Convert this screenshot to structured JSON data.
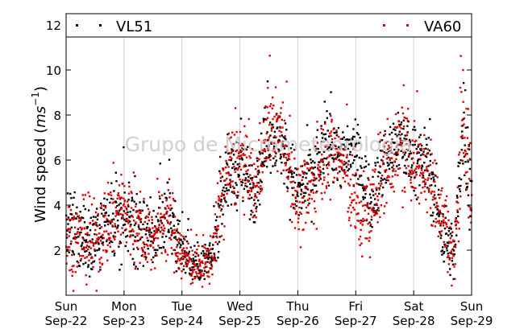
{
  "chart_data": {
    "type": "scatter",
    "title": "",
    "ylabel": "Wind speed (m s^-1)",
    "ylabel_parts": {
      "base": "Wind speed (",
      "unit": "ms",
      "exp": "−1",
      "close": ")"
    },
    "xlabel": "",
    "xlim": [
      0,
      7
    ],
    "ylim": [
      0,
      12.5
    ],
    "yticks": [
      2,
      4,
      6,
      8,
      10,
      12
    ],
    "ytick_labels": [
      "2",
      "4",
      "6",
      "8",
      "10",
      "12"
    ],
    "xticks": [
      0,
      1,
      2,
      3,
      4,
      5,
      6,
      7
    ],
    "xtick_labels": [
      {
        "day": "Sun",
        "date": "Sep-22"
      },
      {
        "day": "Mon",
        "date": "Sep-23"
      },
      {
        "day": "Tue",
        "date": "Sep-24"
      },
      {
        "day": "Wed",
        "date": "Sep-25"
      },
      {
        "day": "Thu",
        "date": "Sep-26"
      },
      {
        "day": "Fri",
        "date": "Sep-27"
      },
      {
        "day": "Sat",
        "date": "Sep-28"
      },
      {
        "day": "Sun",
        "date": "Sep-29"
      }
    ],
    "grid": "vertical-major",
    "legend_position": "top, spanning full width",
    "watermark": "Grupo de Micrometeorología",
    "series": [
      {
        "name": "VL51",
        "color": "#000000",
        "marker": "square-dot",
        "trend": [
          [
            0.0,
            3.0,
            1.4
          ],
          [
            0.25,
            2.7,
            1.3
          ],
          [
            0.5,
            2.6,
            1.4
          ],
          [
            0.75,
            3.0,
            1.5
          ],
          [
            1.0,
            3.6,
            1.4
          ],
          [
            1.25,
            3.0,
            1.3
          ],
          [
            1.5,
            2.4,
            1.2
          ],
          [
            1.75,
            3.8,
            1.4
          ],
          [
            2.0,
            2.0,
            0.9
          ],
          [
            2.25,
            1.3,
            0.6
          ],
          [
            2.5,
            1.6,
            0.8
          ],
          [
            2.75,
            5.2,
            1.4
          ],
          [
            3.0,
            5.6,
            1.3
          ],
          [
            3.25,
            4.8,
            1.3
          ],
          [
            3.5,
            7.2,
            1.2
          ],
          [
            3.75,
            6.6,
            1.3
          ],
          [
            4.0,
            4.4,
            1.3
          ],
          [
            4.25,
            5.4,
            1.3
          ],
          [
            4.5,
            6.8,
            1.2
          ],
          [
            4.75,
            6.2,
            1.2
          ],
          [
            5.0,
            6.3,
            1.2
          ],
          [
            5.25,
            4.2,
            1.2
          ],
          [
            5.5,
            6.0,
            1.3
          ],
          [
            5.75,
            7.0,
            1.2
          ],
          [
            6.0,
            6.1,
            1.2
          ],
          [
            6.25,
            5.9,
            1.2
          ],
          [
            6.5,
            2.8,
            1.3
          ],
          [
            6.7,
            1.8,
            1.0
          ],
          [
            6.85,
            8.0,
            2.2
          ],
          [
            7.0,
            4.0,
            1.6
          ]
        ]
      },
      {
        "name": "VA60",
        "color": "#e00000",
        "marker": "square-dot",
        "trend": [
          [
            0.0,
            2.6,
            1.5
          ],
          [
            0.25,
            2.4,
            1.4
          ],
          [
            0.5,
            2.4,
            1.5
          ],
          [
            0.75,
            3.4,
            1.6
          ],
          [
            1.0,
            3.9,
            1.6
          ],
          [
            1.25,
            2.8,
            1.4
          ],
          [
            1.5,
            2.6,
            1.3
          ],
          [
            1.75,
            3.6,
            1.5
          ],
          [
            2.0,
            1.8,
            1.0
          ],
          [
            2.25,
            1.2,
            0.7
          ],
          [
            2.5,
            1.6,
            0.9
          ],
          [
            2.75,
            5.4,
            1.6
          ],
          [
            3.0,
            6.0,
            1.5
          ],
          [
            3.25,
            4.6,
            1.5
          ],
          [
            3.5,
            7.6,
            1.4
          ],
          [
            3.75,
            7.0,
            1.5
          ],
          [
            4.0,
            4.0,
            1.5
          ],
          [
            4.25,
            4.8,
            1.5
          ],
          [
            4.5,
            6.6,
            1.5
          ],
          [
            4.75,
            6.0,
            1.5
          ],
          [
            5.0,
            3.8,
            1.6
          ],
          [
            5.25,
            3.6,
            1.5
          ],
          [
            5.5,
            5.8,
            1.5
          ],
          [
            5.75,
            6.6,
            1.5
          ],
          [
            6.0,
            6.0,
            1.5
          ],
          [
            6.25,
            5.4,
            1.5
          ],
          [
            6.5,
            3.5,
            1.5
          ],
          [
            6.7,
            1.6,
            1.0
          ],
          [
            6.85,
            8.4,
            2.4
          ],
          [
            7.0,
            3.6,
            1.8
          ]
        ]
      }
    ]
  }
}
